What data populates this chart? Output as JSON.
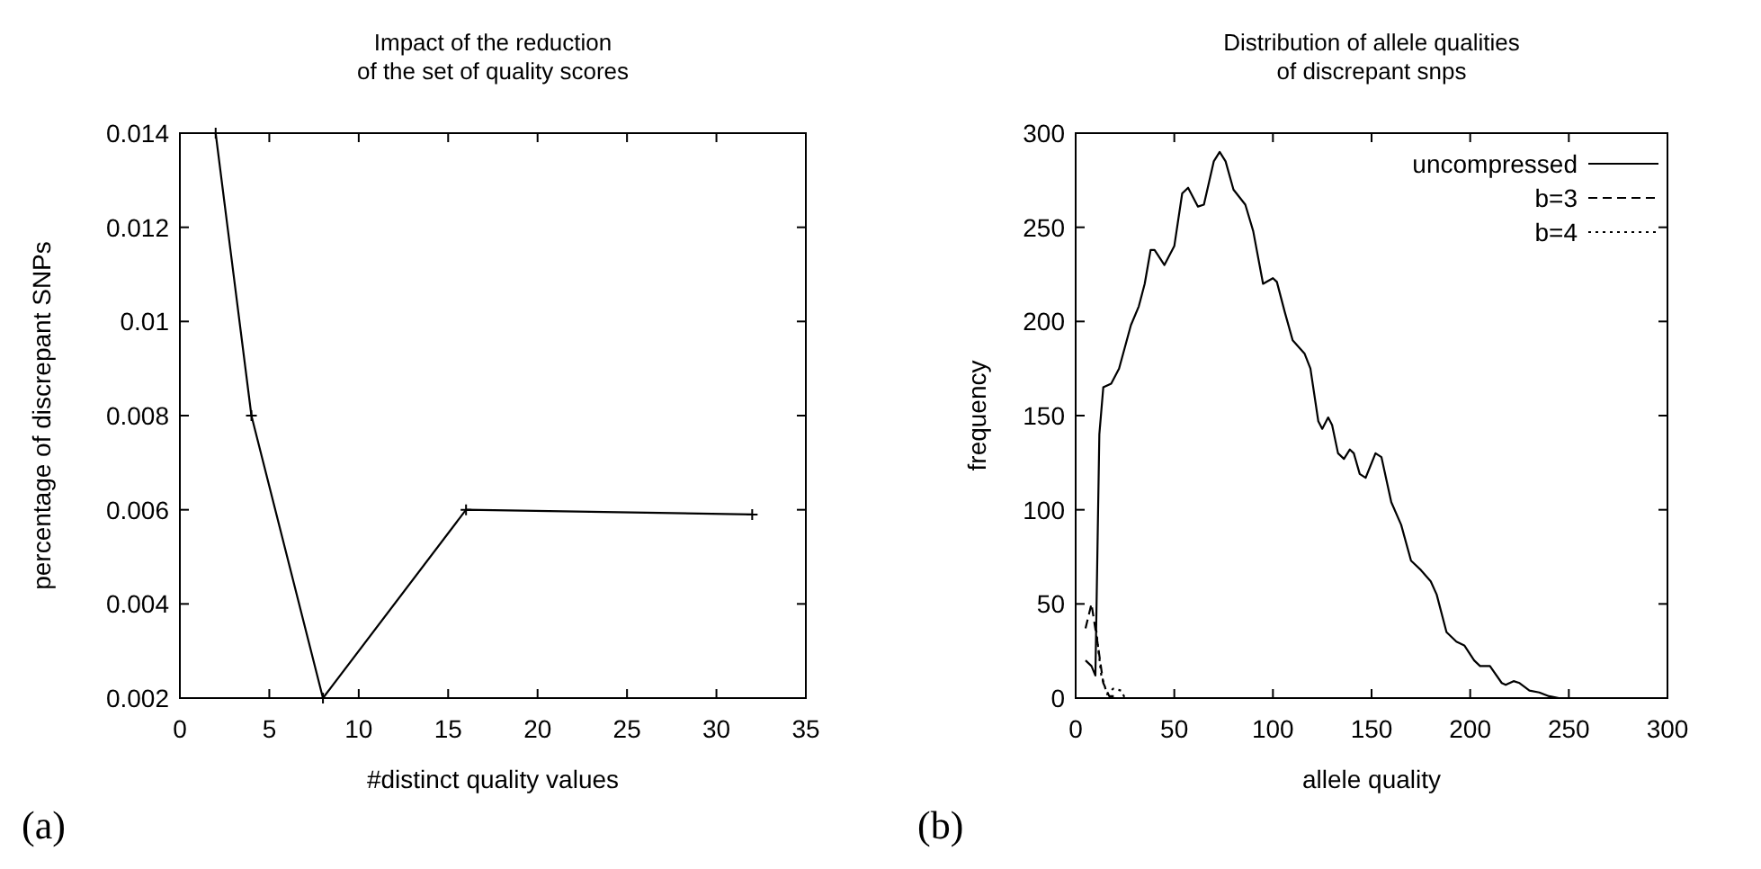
{
  "chart_data": [
    {
      "type": "line",
      "title": "Impact of the reduction\nof the set of quality scores",
      "xlabel": "#distinct quality values",
      "ylabel": "percentage of discrepant SNPs",
      "x": [
        2,
        4,
        8,
        16,
        32
      ],
      "series": [
        {
          "color": "#000000",
          "values": [
            0.014,
            0.008,
            0.002,
            0.006,
            0.0059
          ]
        }
      ],
      "xlim": [
        0,
        35
      ],
      "xticks": [
        0,
        5,
        10,
        15,
        20,
        25,
        30,
        35
      ],
      "ylim": [
        0.002,
        0.014
      ],
      "yticks": [
        0.002,
        0.004,
        0.006,
        0.008,
        0.01,
        0.012,
        0.014
      ],
      "marker": "cross",
      "grid": false,
      "legend": false,
      "annotations": [
        "(a)"
      ]
    },
    {
      "type": "line",
      "title": "Distribution of allele qualities\nof discrepant snps",
      "xlabel": "allele quality",
      "ylabel": "frequency",
      "series": [
        {
          "name": "uncompressed",
          "color": "#000000",
          "line_style": "solid",
          "x": [
            5,
            8,
            10,
            12,
            14,
            18,
            22,
            28,
            32,
            35,
            38,
            40,
            45,
            50,
            54,
            57,
            62,
            65,
            70,
            73,
            76,
            80,
            86,
            90,
            95,
            100,
            102,
            106,
            110,
            116,
            119,
            123,
            125,
            128,
            130,
            133,
            136,
            139,
            141,
            144,
            147,
            152,
            155,
            160,
            165,
            170,
            175,
            180,
            183,
            188,
            193,
            197,
            202,
            205,
            210,
            216,
            218,
            222,
            225,
            230,
            235,
            240,
            245,
            258
          ],
          "values": [
            20,
            17,
            12,
            140,
            165,
            167,
            175,
            198,
            208,
            220,
            238,
            238,
            230,
            240,
            268,
            271,
            261,
            262,
            285,
            290,
            285,
            270,
            262,
            248,
            220,
            223,
            221,
            205,
            190,
            183,
            175,
            147,
            143,
            149,
            145,
            130,
            127,
            132,
            130,
            119,
            117,
            130,
            128,
            104,
            92,
            73,
            68,
            62,
            55,
            35,
            30,
            28,
            20,
            17,
            17,
            8,
            7,
            9,
            8,
            4,
            3,
            1,
            0,
            0
          ]
        },
        {
          "name": "b=3",
          "color": "#000000",
          "line_style": "dashed",
          "x": [
            5,
            8,
            11,
            14,
            17,
            20
          ],
          "values": [
            37,
            50,
            30,
            8,
            1,
            1
          ]
        },
        {
          "name": "b=4",
          "color": "#000000",
          "line_style": "dotted",
          "x": [
            10,
            13,
            16,
            19,
            23,
            25
          ],
          "values": [
            40,
            12,
            2,
            5,
            4,
            0
          ]
        }
      ],
      "xlim": [
        0,
        300
      ],
      "xticks": [
        0,
        50,
        100,
        150,
        200,
        250,
        300
      ],
      "ylim": [
        0,
        300
      ],
      "yticks": [
        0,
        50,
        100,
        150,
        200,
        250,
        300
      ],
      "marker": "none",
      "grid": false,
      "legend": "top right",
      "annotations": [
        "(b)"
      ]
    }
  ]
}
